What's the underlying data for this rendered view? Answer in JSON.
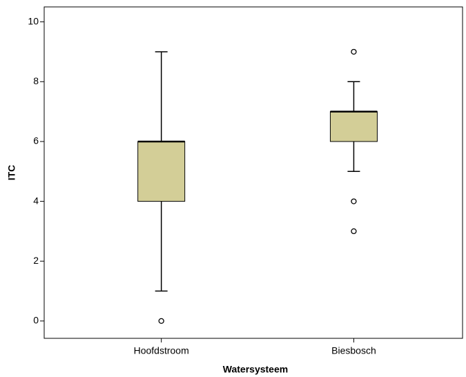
{
  "chart_data": {
    "type": "box",
    "x_label": "Watersysteem",
    "y_label": "ITC",
    "categories": [
      "Hoofdstroom",
      "Biesbosch"
    ],
    "boxes": [
      {
        "min": 1,
        "q1": 4,
        "median": 6,
        "q3": 6,
        "max": 9,
        "outliers": [
          0
        ]
      },
      {
        "min": 5,
        "q1": 6,
        "median": 7,
        "q3": 7,
        "max": 8,
        "outliers": [
          9,
          4,
          3
        ]
      }
    ],
    "color": "#d3ce97",
    "ylim": [
      -0.58,
      10.5
    ],
    "yticks": [
      0,
      2,
      4,
      6,
      8,
      10
    ]
  }
}
